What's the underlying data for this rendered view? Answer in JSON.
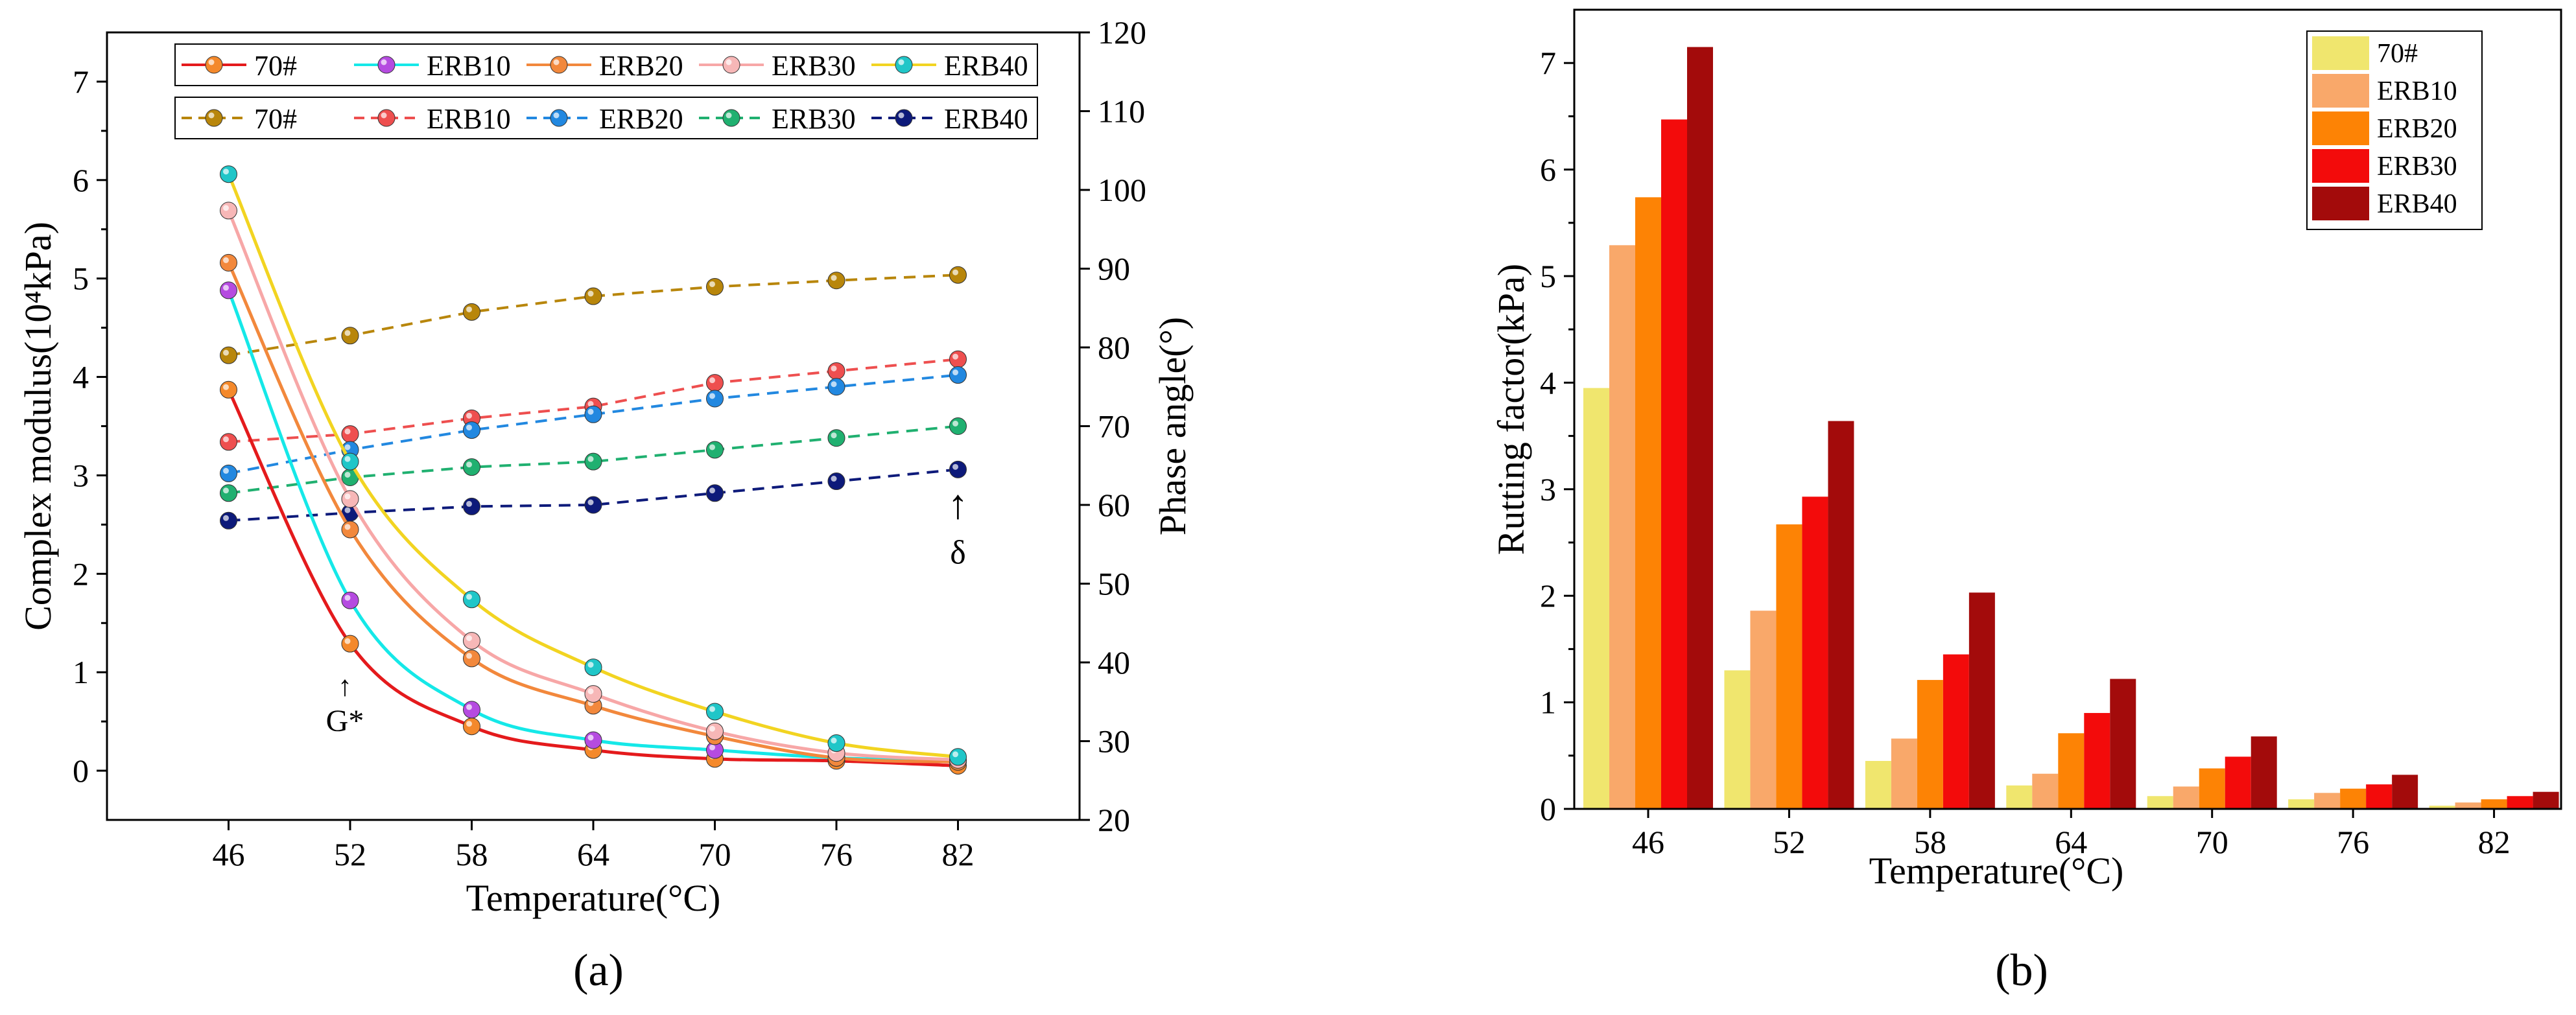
{
  "figure": {
    "labels": [
      "(a)",
      "(b)"
    ]
  },
  "chart_data": [
    {
      "panel": "(a)",
      "type": "line",
      "xlabel": "Temperature(°C)",
      "ylabel_left": "Complex modulus(10⁴kPa)",
      "ylabel_right": "Phase angle(°)",
      "x": [
        46,
        52,
        58,
        64,
        70,
        76,
        82
      ],
      "xlim": [
        40,
        88
      ],
      "ylim_left": [
        -0.5,
        7.5
      ],
      "yticks_left": [
        0,
        1,
        2,
        3,
        4,
        5,
        6,
        7
      ],
      "ylim_right": [
        20,
        120
      ],
      "yticks_right": [
        20,
        30,
        40,
        50,
        60,
        70,
        80,
        90,
        100,
        110,
        120
      ],
      "grid": false,
      "legend_placement": "top",
      "annotations": [
        {
          "text": "G*",
          "arrow": "↑",
          "at_x": 52
        },
        {
          "text": "δ",
          "arrow": "↑",
          "at_x": 82
        }
      ],
      "modulus_series": [
        {
          "name": "70#",
          "line_color": "#e41a1c",
          "marker_color": "#f4892b",
          "values": [
            3.87,
            1.29,
            0.45,
            0.21,
            0.12,
            0.1,
            0.05
          ]
        },
        {
          "name": "ERB10",
          "line_color": "#15e8e8",
          "marker_color": "#b54be0",
          "values": [
            4.88,
            1.73,
            0.62,
            0.31,
            0.21,
            0.13,
            0.1
          ]
        },
        {
          "name": "ERB20",
          "line_color": "#f2883c",
          "marker_color": "#f2883c",
          "values": [
            5.16,
            2.45,
            1.14,
            0.66,
            0.35,
            0.13,
            0.09
          ]
        },
        {
          "name": "ERB30",
          "line_color": "#f7a7a7",
          "marker_color": "#f7b7b7",
          "values": [
            5.69,
            2.76,
            1.32,
            0.78,
            0.4,
            0.18,
            0.11
          ]
        },
        {
          "name": "ERB40",
          "line_color": "#f2d421",
          "marker_color": "#20c6c8",
          "values": [
            6.06,
            3.14,
            1.74,
            1.05,
            0.6,
            0.28,
            0.14
          ]
        }
      ],
      "phase_series": [
        {
          "name": "70#",
          "color": "#b8860b",
          "values": [
            79,
            81.5,
            84.5,
            86.5,
            87.7,
            88.5,
            89.2
          ]
        },
        {
          "name": "ERB10",
          "color": "#ee4f4f",
          "values": [
            68,
            69,
            71,
            72.5,
            75.5,
            77,
            78.5
          ]
        },
        {
          "name": "ERB20",
          "color": "#2288e0",
          "values": [
            64,
            67,
            69.5,
            71.5,
            73.5,
            75,
            76.5
          ]
        },
        {
          "name": "ERB30",
          "color": "#20b070",
          "values": [
            61.5,
            63.5,
            64.8,
            65.5,
            67,
            68.5,
            70
          ]
        },
        {
          "name": "ERB40",
          "color": "#0d1a7a",
          "values": [
            58,
            59,
            59.8,
            60,
            61.5,
            63,
            64.5
          ]
        }
      ]
    },
    {
      "panel": "(b)",
      "type": "bar",
      "xlabel": "Temperature(°C)",
      "ylabel": "Rutting factor(kPa)",
      "categories": [
        "46",
        "52",
        "58",
        "64",
        "70",
        "76",
        "82"
      ],
      "ylim": [
        0,
        7.5
      ],
      "yticks": [
        0,
        1,
        2,
        3,
        4,
        5,
        6,
        7
      ],
      "grid": false,
      "legend_placement": "top-right",
      "series": [
        {
          "name": "70#",
          "color": "#f0e66e",
          "values": [
            3.95,
            1.3,
            0.45,
            0.22,
            0.12,
            0.09,
            0.03
          ]
        },
        {
          "name": "ERB10",
          "color": "#f9a86a",
          "values": [
            5.29,
            1.86,
            0.66,
            0.33,
            0.21,
            0.15,
            0.06
          ]
        },
        {
          "name": "ERB20",
          "color": "#fd8305",
          "values": [
            5.74,
            2.67,
            1.21,
            0.71,
            0.38,
            0.19,
            0.09
          ]
        },
        {
          "name": "ERB30",
          "color": "#f30b0b",
          "values": [
            6.47,
            2.93,
            1.45,
            0.9,
            0.49,
            0.23,
            0.12
          ]
        },
        {
          "name": "ERB40",
          "color": "#a30b0b",
          "values": [
            7.15,
            3.64,
            2.03,
            1.22,
            0.68,
            0.32,
            0.16
          ]
        }
      ]
    }
  ]
}
